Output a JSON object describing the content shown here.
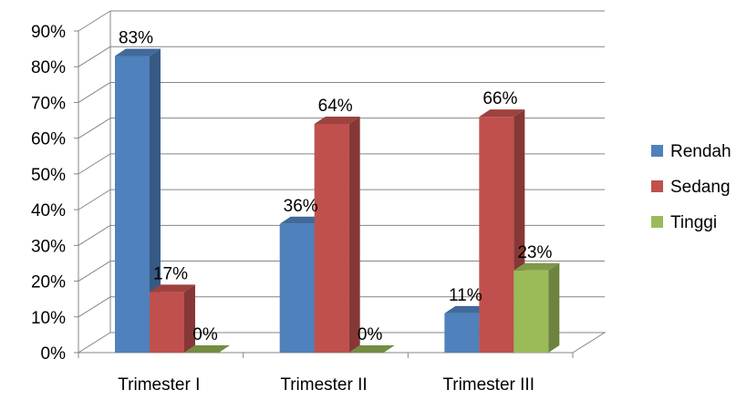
{
  "chart_data": {
    "type": "bar",
    "categories": [
      "Trimester I",
      "Trimester II",
      "Trimester III"
    ],
    "series": [
      {
        "name": "Rendah",
        "values": [
          83,
          36,
          11
        ],
        "labels": [
          "83%",
          "36%",
          "11%"
        ],
        "color": "#4F81BD"
      },
      {
        "name": "Sedang",
        "values": [
          17,
          64,
          66
        ],
        "labels": [
          "17%",
          "64%",
          "66%"
        ],
        "color": "#C0504D"
      },
      {
        "name": "Tinggi",
        "values": [
          0,
          0,
          23
        ],
        "labels": [
          "0%",
          "0%",
          "23%"
        ],
        "color": "#9BBB59"
      }
    ],
    "y_ticks": [
      "0%",
      "10%",
      "20%",
      "30%",
      "40%",
      "50%",
      "60%",
      "70%",
      "80%",
      "90%"
    ],
    "ylim": [
      0,
      90
    ],
    "grid": true,
    "legend_position": "right",
    "style": "3d-clustered-column"
  }
}
